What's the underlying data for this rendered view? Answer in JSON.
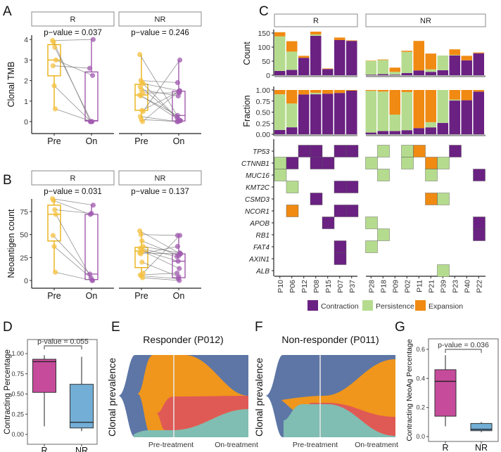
{
  "panel_labels": [
    "A",
    "B",
    "C",
    "D",
    "E",
    "F",
    "G"
  ],
  "colors": {
    "pre": "#e8ab00",
    "pre_point": "#f5c242",
    "on": "#9b4fa8",
    "on_point": "#a25bb0",
    "contraction": "#6a2182",
    "persistence": "#b5dc8e",
    "expansion": "#f08a12",
    "box_R": "#c64b9b",
    "box_NR": "#72aed6",
    "fish_blue": "#5d76a6",
    "fish_orange": "#f0961c",
    "fish_red": "#e05a55",
    "fish_teal": "#80bdb2"
  },
  "chart_data": [
    {
      "id": "A",
      "type": "box-paired",
      "ylabel": "Clonal TMB",
      "ylim": [
        0,
        4.2
      ],
      "yticks": [
        0,
        1,
        2,
        3,
        4
      ],
      "x_categories": [
        "Pre",
        "On"
      ],
      "facets": [
        {
          "label": "R",
          "pvalue": "p−value = 0.037",
          "pre": [
            3.95,
            3.88,
            3.62,
            3.0,
            2.72,
            1.75,
            0.62
          ],
          "on": [
            4.0,
            0,
            0,
            2.25,
            2.6,
            0,
            0
          ],
          "box_pre": {
            "lo": 0.62,
            "q1": 2.23,
            "med": 3.0,
            "q3": 3.75,
            "hi": 3.95
          },
          "box_on": {
            "lo": 0,
            "q1": 0.03,
            "med": 0.05,
            "q3": 2.42,
            "hi": 4.0
          }
        },
        {
          "label": "NR",
          "pvalue": "p−value = 0.246",
          "pre": [
            3.27,
            2.0,
            1.9,
            1.85,
            1.7,
            1.55,
            1.4,
            1.3,
            1.25,
            0.55,
            0.5,
            0.25,
            0.1,
            0.0
          ],
          "on": [
            0.05,
            1.9,
            0.1,
            1.5,
            0.2,
            1.25,
            1.4,
            0.05,
            0.3,
            1.45,
            3.0,
            0,
            0,
            1.5
          ],
          "box_pre": {
            "lo": 0,
            "q1": 0.55,
            "med": 1.3,
            "q3": 1.82,
            "hi": 3.27
          },
          "box_on": {
            "lo": 0,
            "q1": 0.03,
            "med": 0.3,
            "q3": 1.48,
            "hi": 3.0
          }
        }
      ]
    },
    {
      "id": "B",
      "type": "box-paired",
      "ylabel": "Neoantigen count",
      "ylim": [
        0,
        92
      ],
      "yticks": [
        0,
        25,
        50,
        75
      ],
      "x_categories": [
        "Pre",
        "On"
      ],
      "facets": [
        {
          "label": "R",
          "pvalue": "p−value = 0.031",
          "pre": [
            89,
            87,
            77,
            72,
            49,
            37,
            9
          ],
          "on": [
            82,
            72,
            73,
            0,
            7,
            3,
            0
          ],
          "box_pre": {
            "lo": 9,
            "q1": 43,
            "med": 72,
            "q3": 82,
            "hi": 89
          },
          "box_on": {
            "lo": 0,
            "q1": 1,
            "med": 7,
            "q3": 72,
            "hi": 82
          }
        },
        {
          "label": "NR",
          "pvalue": "p−value = 0.137",
          "pre": [
            54,
            50,
            43,
            37,
            35,
            33,
            32,
            30,
            29,
            20,
            8,
            6,
            5,
            3
          ],
          "on": [
            29,
            49,
            27,
            30,
            26,
            21,
            13,
            29,
            37,
            4,
            49,
            8,
            2,
            0
          ],
          "box_pre": {
            "lo": 3,
            "q1": 14,
            "med": 32,
            "q3": 36,
            "hi": 54
          },
          "box_on": {
            "lo": 0,
            "q1": 3,
            "med": 21,
            "q3": 29,
            "hi": 49
          }
        }
      ]
    },
    {
      "id": "C",
      "type": "bar-stacked+heatmap",
      "count_ylabel": "Count",
      "count_yticks": [
        0,
        50,
        100,
        150
      ],
      "fraction_ylabel": "Fraction",
      "fraction_yticks": [
        "0.00",
        "0.25",
        "0.50",
        "0.75",
        "1.00"
      ],
      "series_names": [
        "Contraction",
        "Persistence",
        "Expansion"
      ],
      "facets": [
        {
          "label": "R",
          "patients": [
            "P10",
            "P06",
            "P12",
            "P08",
            "P15",
            "P07",
            "P37"
          ],
          "contraction": [
            15,
            19,
            62,
            140,
            22,
            125,
            122
          ],
          "persistence": [
            123,
            65,
            0,
            5,
            0,
            0,
            0
          ],
          "expansion": [
            15,
            37,
            7,
            10,
            2,
            9,
            2
          ]
        },
        {
          "label": "NR",
          "patients": [
            "P28",
            "P18",
            "P09",
            "P02",
            "P11",
            "P21",
            "P39",
            "P23",
            "P40",
            "P22"
          ],
          "contraction": [
            2,
            4,
            2,
            8,
            17,
            12,
            18,
            70,
            53,
            78
          ],
          "persistence": [
            49,
            50,
            10,
            75,
            0,
            9,
            52,
            2,
            0,
            0
          ],
          "expansion": [
            1,
            2,
            15,
            4,
            105,
            56,
            0,
            20,
            16,
            3
          ]
        }
      ],
      "genes": [
        "TP53",
        "CTNNB1",
        "MUC16",
        "KMT2C",
        "CSMD3",
        "NCOR1",
        "APOB",
        "RB1",
        "FAT4",
        "AXIN1",
        "ALB"
      ],
      "mutations": {
        "TP53": {
          "P12": "Contraction",
          "P08": "Contraction",
          "P07": "Contraction",
          "P37": "Contraction",
          "P18": "Persistence",
          "P02": "Persistence",
          "P11": "Expansion",
          "P23": "Contraction"
        },
        "CTNNB1": {
          "P10": "Persistence",
          "P06": "Contraction",
          "P08": "Contraction",
          "P15": "Contraction",
          "P28": "Persistence",
          "P02": "Persistence",
          "P21": "Expansion",
          "P39": "Persistence"
        },
        "MUC16": {
          "P10": "Persistence",
          "P18": "Persistence",
          "P21": "Persistence",
          "P22": "Contraction"
        },
        "KMT2C": {
          "P06": "Persistence",
          "P07": "Contraction",
          "P37": "Contraction"
        },
        "CSMD3": {
          "P08": "Contraction",
          "P21": "Expansion",
          "P39": "Persistence"
        },
        "NCOR1": {
          "P06": "Expansion",
          "P07": "Contraction",
          "P37": "Contraction"
        },
        "APOB": {
          "P15": "Contraction",
          "P28": "Persistence",
          "P22": "Contraction"
        },
        "RB1": {
          "P18": "Persistence",
          "P22": "Contraction"
        },
        "FAT4": {
          "P07": "Contraction",
          "P28": "Persistence"
        },
        "AXIN1": {
          "P07": "Contraction"
        },
        "ALB": {
          "P39": "Persistence"
        }
      },
      "legend": [
        "Contraction",
        "Persistence",
        "Expansion"
      ]
    },
    {
      "id": "D",
      "type": "box",
      "ylabel": "Contracting Percentage",
      "categories": [
        "R",
        "NR"
      ],
      "yticks": [
        "0.00",
        "0.25",
        "0.50",
        "0.75",
        "1.00"
      ],
      "ylim": [
        -0.1,
        1.15
      ],
      "pvalue": "p-value = 0.055",
      "boxes": [
        {
          "lo": 0.1,
          "q1": 0.52,
          "med": 0.9,
          "q3": 0.93,
          "hi": 0.98
        },
        {
          "lo": 0.04,
          "q1": 0.08,
          "med": 0.15,
          "q3": 0.62,
          "hi": 0.96
        }
      ]
    },
    {
      "id": "E",
      "type": "fishplot",
      "title": "Responder (P012)",
      "ylabel": "Clonal prevalence",
      "xlabels": [
        "Pre-treatment",
        "On-treatment"
      ]
    },
    {
      "id": "F",
      "type": "fishplot",
      "title": "Non-responder (P011)",
      "ylabel": "Clonal prevalence",
      "xlabels": [
        "Pre-treatment",
        "On-treatment"
      ]
    },
    {
      "id": "G",
      "type": "box",
      "ylabel": "Contracting NeoAg Percentage",
      "categories": [
        "R",
        "NR"
      ],
      "yticks": [
        "0.0",
        "0.2",
        "0.4",
        "0.6"
      ],
      "ylim": [
        -0.03,
        0.68
      ],
      "pvalue": "p-value = 0.036",
      "boxes": [
        {
          "lo": 0.07,
          "q1": 0.14,
          "med": 0.38,
          "q3": 0.46,
          "hi": 0.56
        },
        {
          "lo": 0.03,
          "q1": 0.04,
          "med": 0.05,
          "q3": 0.09,
          "hi": 0.1
        }
      ]
    }
  ]
}
